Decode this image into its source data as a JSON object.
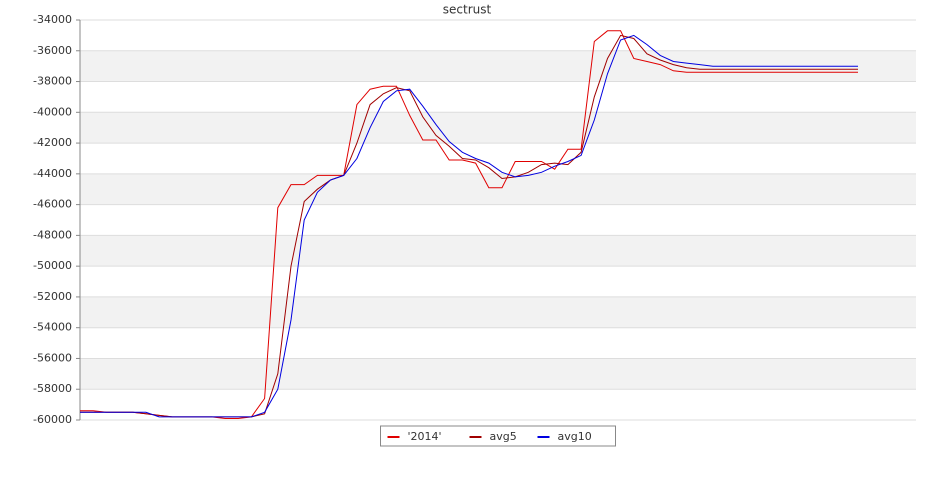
{
  "chart_data": {
    "type": "line",
    "title": "sectrust",
    "ylim": [
      -60000,
      -34000
    ],
    "yticks": [
      -60000,
      -58000,
      -56000,
      -54000,
      -52000,
      -50000,
      -48000,
      -46000,
      -44000,
      -42000,
      -40000,
      -38000,
      -36000,
      -34000
    ],
    "grid": true,
    "legend": "bottom",
    "series": [
      {
        "name": "'2014'",
        "color": "#e00000",
        "values": [
          -59400,
          -59400,
          -59500,
          -59500,
          -59500,
          -59600,
          -59700,
          -59800,
          -59800,
          -59800,
          -59800,
          -59900,
          -59900,
          -59800,
          -58600,
          -46200,
          -44700,
          -44700,
          -44100,
          -44100,
          -44100,
          -39500,
          -38500,
          -38300,
          -38300,
          -40200,
          -41800,
          -41800,
          -43100,
          -43100,
          -43300,
          -44900,
          -44900,
          -43200,
          -43200,
          -43200,
          -43700,
          -42400,
          -42400,
          -35400,
          -34700,
          -34700,
          -36500,
          -36700,
          -36900,
          -37300,
          -37400,
          -37400,
          -37400,
          -37400,
          -37400,
          -37400,
          -37400,
          -37400,
          -37400,
          -37400,
          -37400,
          -37400,
          -37400,
          -37400
        ]
      },
      {
        "name": "avg5",
        "color": "#a00000",
        "values": [
          -59500,
          -59500,
          -59500,
          -59500,
          -59500,
          -59600,
          -59700,
          -59800,
          -59800,
          -59800,
          -59800,
          -59800,
          -59800,
          -59800,
          -59600,
          -57000,
          -50000,
          -45800,
          -45000,
          -44400,
          -44100,
          -42000,
          -39500,
          -38800,
          -38400,
          -38600,
          -40300,
          -41500,
          -42200,
          -43000,
          -43100,
          -43600,
          -44300,
          -44200,
          -43900,
          -43400,
          -43300,
          -43400,
          -42600,
          -39000,
          -36500,
          -35000,
          -35200,
          -36200,
          -36600,
          -36900,
          -37100,
          -37200,
          -37200,
          -37200,
          -37200,
          -37200,
          -37200,
          -37200,
          -37200,
          -37200,
          -37200,
          -37200,
          -37200,
          -37200
        ]
      },
      {
        "name": "avg10",
        "color": "#0000e0",
        "values": [
          -59500,
          -59500,
          -59500,
          -59500,
          -59500,
          -59500,
          -59800,
          -59800,
          -59800,
          -59800,
          -59800,
          -59800,
          -59800,
          -59800,
          -59500,
          -58000,
          -53500,
          -47000,
          -45200,
          -44400,
          -44100,
          -43000,
          -41000,
          -39300,
          -38600,
          -38500,
          -39600,
          -40800,
          -41900,
          -42600,
          -43000,
          -43300,
          -43900,
          -44200,
          -44100,
          -43900,
          -43500,
          -43200,
          -42800,
          -40500,
          -37500,
          -35300,
          -35000,
          -35600,
          -36300,
          -36700,
          -36800,
          -36900,
          -37000,
          -37000,
          -37000,
          -37000,
          -37000,
          -37000,
          -37000,
          -37000,
          -37000,
          -37000,
          -37000,
          -37000
        ]
      }
    ]
  }
}
